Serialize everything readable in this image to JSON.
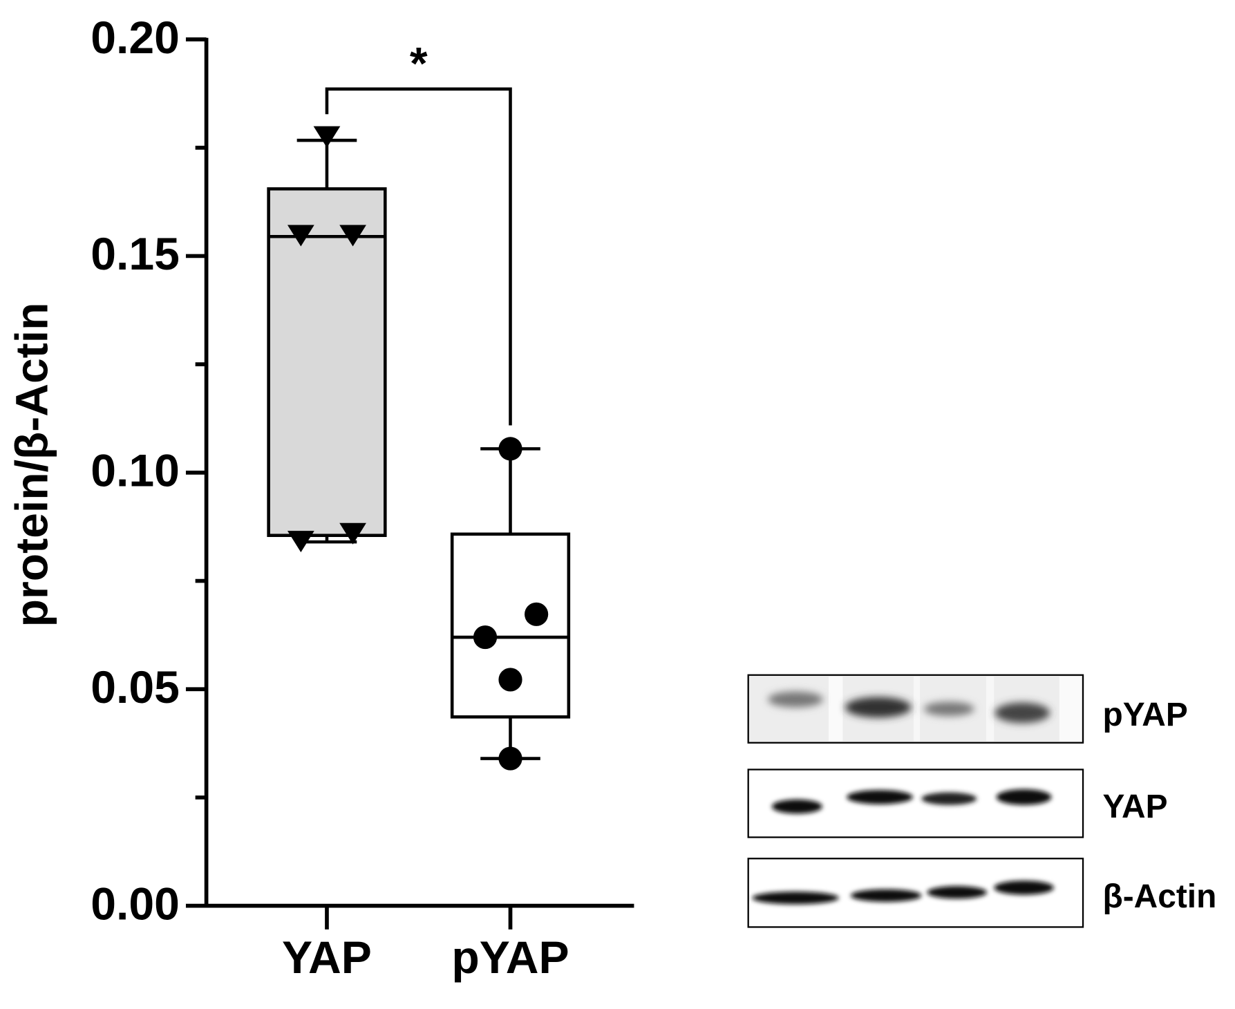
{
  "chart_data": {
    "type": "box",
    "y_label": "protein/β-Actin",
    "categories": [
      "YAP",
      "pYAP"
    ],
    "ylim": [
      0,
      0.2
    ],
    "yticks": [
      {
        "value": 0,
        "label": "0.00"
      },
      {
        "value": 0.05,
        "label": "0.05"
      },
      {
        "value": 0.1,
        "label": "0.10"
      },
      {
        "value": 0.15,
        "label": "0.15"
      },
      {
        "value": 0.2,
        "label": "0.20"
      }
    ],
    "yminorticks": [
      0.025,
      0.075,
      0.125,
      0.175
    ],
    "series": [
      {
        "name": "YAP",
        "color": "#d9d9d9",
        "marker": "triangle-down",
        "whisker_low": 0.084,
        "q1": 0.0855,
        "median": 0.1545,
        "q3": 0.1655,
        "whisker_high": 0.1767,
        "points": [
          0.1778,
          0.155,
          0.155,
          0.0844,
          0.0862
        ]
      },
      {
        "name": "pYAP",
        "color": "#ffffff",
        "marker": "circle",
        "whisker_low": 0.034,
        "q1": 0.0436,
        "median": 0.062,
        "q3": 0.0858,
        "whisker_high": 0.1055,
        "points": [
          0.1055,
          0.0673,
          0.062,
          0.0522,
          0.034
        ]
      }
    ],
    "annotations": [
      {
        "text": "*"
      }
    ]
  },
  "blot": {
    "labels": [
      "pYAP",
      "YAP",
      "β-Actin"
    ]
  }
}
